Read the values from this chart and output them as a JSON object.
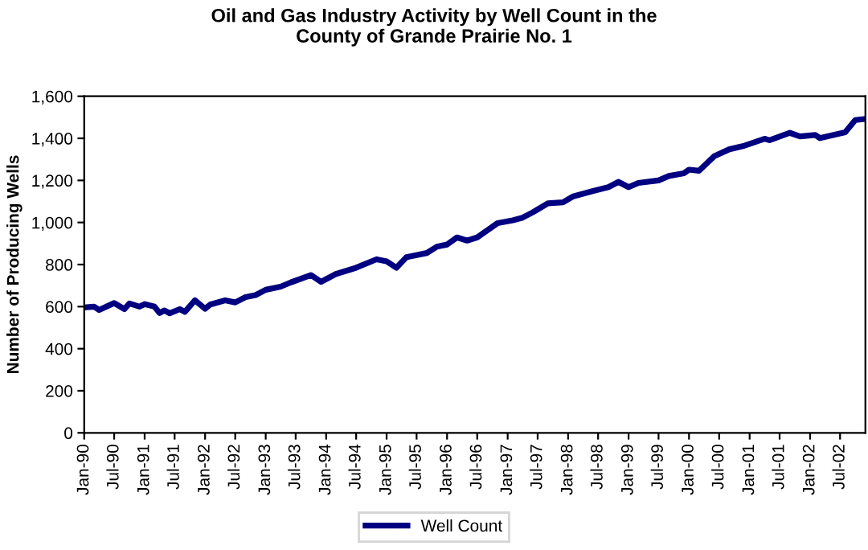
{
  "chart_data": {
    "type": "line",
    "title": "Oil and Gas Industry Activity by Well Count in the\nCounty of Grande Prairie No. 1",
    "ylabel": "Number of Producing Wells",
    "x": [
      "1990-01",
      "1990-03",
      "1990-04",
      "1990-07",
      "1990-09",
      "1990-10",
      "1990-12",
      "1991-01",
      "1991-03",
      "1991-04",
      "1991-05",
      "1991-06",
      "1991-08",
      "1991-09",
      "1991-11",
      "1992-01",
      "1992-02",
      "1992-05",
      "1992-07",
      "1992-09",
      "1992-11",
      "1993-01",
      "1993-04",
      "1993-06",
      "1993-10",
      "1993-12",
      "1994-03",
      "1994-07",
      "1994-11",
      "1995-01",
      "1995-03",
      "1995-05",
      "1995-09",
      "1995-11",
      "1996-01",
      "1996-03",
      "1996-05",
      "1996-07",
      "1996-11",
      "1997-02",
      "1997-04",
      "1997-06",
      "1997-09",
      "1997-12",
      "1998-02",
      "1998-06",
      "1998-09",
      "1998-11",
      "1999-01",
      "1999-03",
      "1999-07",
      "1999-09",
      "1999-12",
      "2000-01",
      "2000-03",
      "2000-06",
      "2000-09",
      "2000-12",
      "2001-04",
      "2001-05",
      "2001-09",
      "2001-11",
      "2002-02",
      "2002-03",
      "2002-08",
      "2002-10",
      "2002-12"
    ],
    "series": [
      {
        "name": "Well Count",
        "color": "#000080",
        "values": [
          596,
          600,
          584,
          617,
          588,
          615,
          600,
          612,
          600,
          570,
          582,
          568,
          588,
          575,
          630,
          590,
          610,
          630,
          620,
          645,
          655,
          680,
          695,
          715,
          750,
          718,
          755,
          785,
          825,
          815,
          785,
          835,
          855,
          885,
          895,
          929,
          914,
          929,
          997,
          1010,
          1023,
          1048,
          1091,
          1096,
          1124,
          1150,
          1168,
          1193,
          1168,
          1188,
          1200,
          1221,
          1234,
          1251,
          1246,
          1315,
          1348,
          1365,
          1398,
          1391,
          1426,
          1409,
          1416,
          1401,
          1429,
          1487,
          1492
        ]
      }
    ],
    "xlim": [
      "1990-01",
      "2002-12"
    ],
    "xticks": [
      {
        "value": "1990-01",
        "label": "Jan-90"
      },
      {
        "value": "1990-07",
        "label": "Jul-90"
      },
      {
        "value": "1991-01",
        "label": "Jan-91"
      },
      {
        "value": "1991-07",
        "label": "Jul-91"
      },
      {
        "value": "1992-01",
        "label": "Jan-92"
      },
      {
        "value": "1992-07",
        "label": "Jul-92"
      },
      {
        "value": "1993-01",
        "label": "Jan-93"
      },
      {
        "value": "1993-07",
        "label": "Jul-93"
      },
      {
        "value": "1994-01",
        "label": "Jan-94"
      },
      {
        "value": "1994-07",
        "label": "Jul-94"
      },
      {
        "value": "1995-01",
        "label": "Jan-95"
      },
      {
        "value": "1995-07",
        "label": "Jul-95"
      },
      {
        "value": "1996-01",
        "label": "Jan-96"
      },
      {
        "value": "1996-07",
        "label": "Jul-96"
      },
      {
        "value": "1997-01",
        "label": "Jan-97"
      },
      {
        "value": "1997-07",
        "label": "Jul-97"
      },
      {
        "value": "1998-01",
        "label": "Jan-98"
      },
      {
        "value": "1998-07",
        "label": "Jul-98"
      },
      {
        "value": "1999-01",
        "label": "Jan-99"
      },
      {
        "value": "1999-07",
        "label": "Jul-99"
      },
      {
        "value": "2000-01",
        "label": "Jan-00"
      },
      {
        "value": "2000-07",
        "label": "Jul-00"
      },
      {
        "value": "2001-01",
        "label": "Jan-01"
      },
      {
        "value": "2001-07",
        "label": "Jul-01"
      },
      {
        "value": "2002-01",
        "label": "Jan-02"
      },
      {
        "value": "2002-07",
        "label": "Jul-02"
      }
    ],
    "ylim": [
      0,
      1600
    ],
    "yticks": [
      0,
      200,
      400,
      600,
      800,
      {
        "value": 1000,
        "label": "1,000"
      },
      {
        "value": 1200,
        "label": "1,200"
      },
      {
        "value": 1400,
        "label": "1,400"
      },
      {
        "value": 1600,
        "label": "1,600"
      }
    ],
    "grid": false,
    "legend": "bottom",
    "marker": "none",
    "line_style": "solid"
  }
}
